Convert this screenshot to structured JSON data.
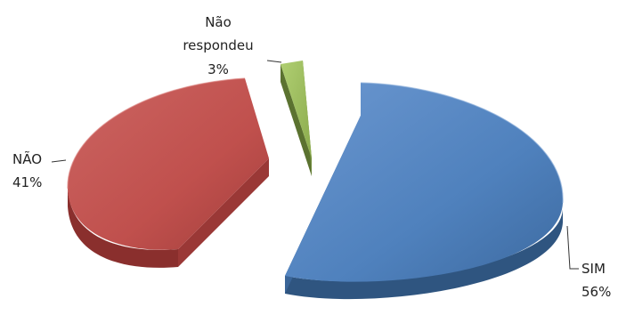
{
  "chart_data": {
    "type": "pie",
    "style": "3d-exploded",
    "title": "",
    "legend": "none",
    "slices": [
      {
        "label": "SIM",
        "value": 56,
        "display": "56%",
        "color": "#4F81BD"
      },
      {
        "label": "NÃO",
        "value": 41,
        "display": "41%",
        "color": "#C0504D"
      },
      {
        "label": "Não respondeu",
        "value": 3,
        "display": "3%",
        "color": "#9BBB59"
      }
    ]
  }
}
